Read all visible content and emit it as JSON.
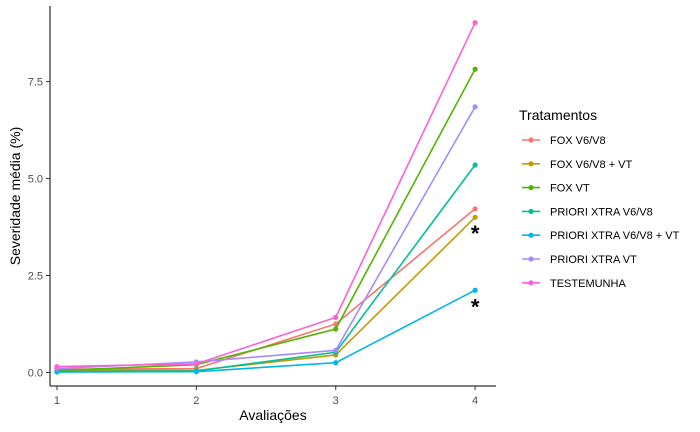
{
  "chart_data": {
    "type": "line",
    "title": "",
    "xlabel": "Avaliações",
    "ylabel": "Severidade média (%)",
    "x": [
      1,
      2,
      3,
      4
    ],
    "x_ticks": [
      "1",
      "2",
      "3",
      "4"
    ],
    "xlim": [
      0.95,
      4.15
    ],
    "ylim": [
      -0.35,
      9.45
    ],
    "y_ticks": [
      0.0,
      2.5,
      5.0,
      7.5
    ],
    "y_tick_labels": [
      "0.0",
      "2.5",
      "5.0",
      "7.5"
    ],
    "grid": false,
    "legend": {
      "title": "Tratamentos",
      "position": "right"
    },
    "series": [
      {
        "name": "FOX V6/V8",
        "color": "#F8766D",
        "values": [
          0.08,
          0.1,
          1.25,
          4.22
        ]
      },
      {
        "name": "FOX V6/V8 + VT",
        "color": "#C49A00",
        "values": [
          0.06,
          0.05,
          0.45,
          4.0
        ]
      },
      {
        "name": "FOX VT",
        "color": "#53B400",
        "values": [
          0.05,
          0.2,
          1.12,
          7.82
        ]
      },
      {
        "name": "PRIORI XTRA V6/V8",
        "color": "#00C094",
        "values": [
          0.02,
          0.04,
          0.52,
          5.35
        ]
      },
      {
        "name": "PRIORI XTRA V6/V8 + VT",
        "color": "#00B6EB",
        "values": [
          0.01,
          0.02,
          0.25,
          2.12
        ]
      },
      {
        "name": "PRIORI XTRA VT",
        "color": "#A58AFF",
        "values": [
          0.1,
          0.27,
          0.57,
          6.85
        ]
      },
      {
        "name": "TESTEMUNHA",
        "color": "#FB61D7",
        "values": [
          0.15,
          0.22,
          1.42,
          9.02
        ]
      }
    ],
    "annotations": [
      {
        "text": "*",
        "x": 4,
        "y": 3.7
      },
      {
        "text": "*",
        "x": 4,
        "y": 1.8
      }
    ]
  }
}
